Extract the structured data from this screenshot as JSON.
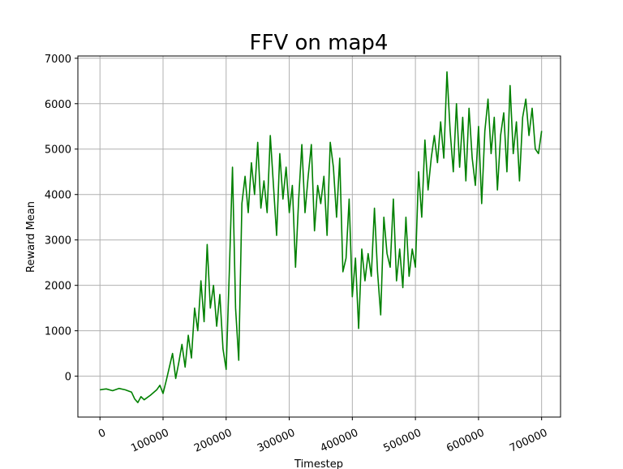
{
  "chart_data": {
    "type": "line",
    "title": "FFV on map4",
    "xlabel": "Timestep",
    "ylabel": "Reward Mean",
    "xlim": [
      -35000,
      730000
    ],
    "ylim": [
      -900,
      7050
    ],
    "xticks": [
      0,
      100000,
      200000,
      300000,
      400000,
      500000,
      600000,
      700000
    ],
    "xtick_labels": [
      "0",
      "100000",
      "200000",
      "300000",
      "400000",
      "500000",
      "600000",
      "700000"
    ],
    "yticks": [
      0,
      1000,
      2000,
      3000,
      4000,
      5000,
      6000,
      7000
    ],
    "ytick_labels": [
      "0",
      "1000",
      "2000",
      "3000",
      "4000",
      "5000",
      "6000",
      "7000"
    ],
    "xtick_rotation_deg": -25,
    "grid": true,
    "legend": "none",
    "series": [
      {
        "color": "#008000",
        "x": [
          0,
          10000,
          20000,
          30000,
          40000,
          50000,
          55000,
          60000,
          65000,
          70000,
          80000,
          90000,
          95000,
          100000,
          105000,
          110000,
          115000,
          120000,
          125000,
          130000,
          135000,
          140000,
          145000,
          150000,
          155000,
          160000,
          165000,
          170000,
          175000,
          180000,
          185000,
          190000,
          195000,
          200000,
          205000,
          210000,
          215000,
          220000,
          225000,
          230000,
          235000,
          240000,
          245000,
          250000,
          255000,
          260000,
          265000,
          270000,
          275000,
          280000,
          285000,
          290000,
          295000,
          300000,
          305000,
          310000,
          315000,
          320000,
          325000,
          330000,
          335000,
          340000,
          345000,
          350000,
          355000,
          360000,
          365000,
          370000,
          375000,
          380000,
          385000,
          390000,
          395000,
          400000,
          405000,
          410000,
          415000,
          420000,
          425000,
          430000,
          435000,
          440000,
          445000,
          450000,
          455000,
          460000,
          465000,
          470000,
          475000,
          480000,
          485000,
          490000,
          495000,
          500000,
          505000,
          510000,
          515000,
          520000,
          525000,
          530000,
          535000,
          540000,
          545000,
          550000,
          555000,
          560000,
          565000,
          570000,
          575000,
          580000,
          585000,
          590000,
          595000,
          600000,
          605000,
          610000,
          615000,
          620000,
          625000,
          630000,
          635000,
          640000,
          645000,
          650000,
          655000,
          660000,
          665000,
          670000,
          675000,
          680000,
          685000,
          690000,
          695000,
          700000
        ],
        "y": [
          -300,
          -280,
          -320,
          -270,
          -300,
          -350,
          -500,
          -580,
          -450,
          -520,
          -420,
          -300,
          -200,
          -380,
          -100,
          200,
          500,
          -50,
          300,
          700,
          200,
          900,
          400,
          1500,
          1000,
          2100,
          1200,
          2900,
          1500,
          2000,
          1100,
          1800,
          600,
          150,
          2300,
          4600,
          1500,
          350,
          3800,
          4400,
          3600,
          4700,
          4000,
          5150,
          3700,
          4300,
          3600,
          5300,
          4200,
          3100,
          4900,
          3900,
          4600,
          3600,
          4200,
          2400,
          3900,
          5100,
          3600,
          4400,
          5100,
          3200,
          4200,
          3800,
          4400,
          3100,
          5150,
          4600,
          3500,
          4800,
          2300,
          2600,
          3900,
          1750,
          2600,
          1050,
          2800,
          2100,
          2700,
          2200,
          3700,
          2300,
          1350,
          3500,
          2700,
          2400,
          3900,
          2100,
          2800,
          1950,
          3500,
          2200,
          2800,
          2400,
          4500,
          3500,
          5200,
          4100,
          4800,
          5300,
          4700,
          5600,
          4800,
          6700,
          5400,
          4500,
          6000,
          4600,
          5700,
          4300,
          5900,
          4800,
          4200,
          5500,
          3800,
          5400,
          6100,
          4900,
          5700,
          4100,
          5300,
          5800,
          4500,
          6400,
          4900,
          5600,
          4300,
          5700,
          6100,
          5300,
          5900,
          5000,
          4900,
          5400
        ]
      }
    ]
  }
}
